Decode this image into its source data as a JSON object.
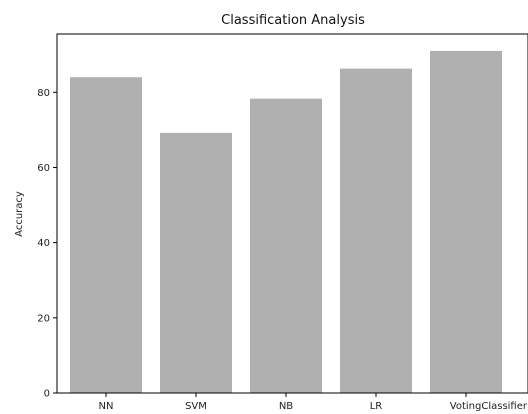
{
  "chart_data": {
    "type": "bar",
    "title": "Classification Analysis",
    "xlabel": "",
    "ylabel": "Accuracy",
    "categories": [
      "NN",
      "SVM",
      "NB",
      "LR",
      "VotingClassifier"
    ],
    "values": [
      84.0,
      69.2,
      78.3,
      86.3,
      91.0
    ],
    "ylim": [
      0,
      95.5
    ],
    "yticks": [
      0,
      20,
      40,
      60,
      80
    ],
    "grid": false,
    "bar_color": "#b0b0b0"
  }
}
